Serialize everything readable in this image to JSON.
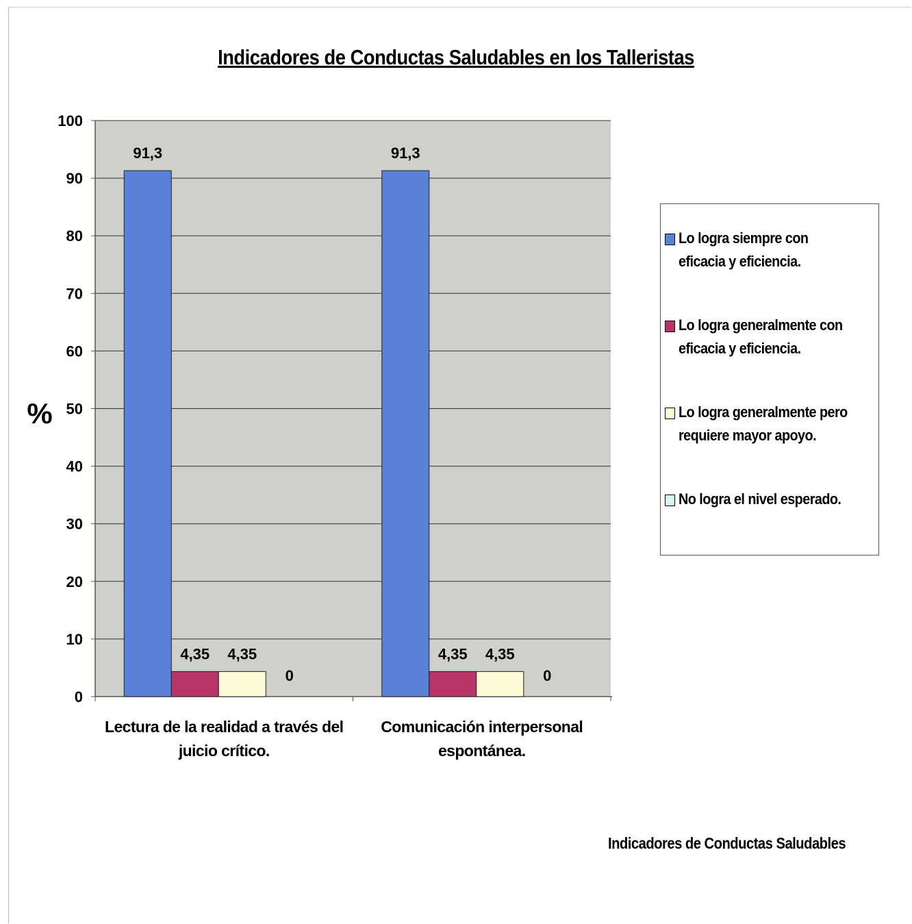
{
  "chart_data": {
    "type": "bar",
    "title": "Indicadores de Conductas Saludables en los Talleristas",
    "ylabel": "%",
    "xlabel": "Indicadores de Conductas Saludables",
    "ylim": [
      0,
      100
    ],
    "yticks": [
      "0",
      "10",
      "20",
      "30",
      "40",
      "50",
      "60",
      "70",
      "80",
      "90",
      "100"
    ],
    "grid": true,
    "legend_position": "right",
    "categories": [
      [
        "Lectura de la realidad a través del",
        "juicio crítico."
      ],
      [
        "Comunicación interpersonal",
        "espontánea."
      ]
    ],
    "series": [
      {
        "name": "Lo logra siempre con eficacia y eficiencia.",
        "values": [
          91.3,
          91.3
        ],
        "labels": [
          "91,3",
          "91,3"
        ],
        "color": "#5b80d9"
      },
      {
        "name": "Lo logra generalmente con eficacia y eficiencia.",
        "values": [
          4.35,
          4.35
        ],
        "labels": [
          "4,35",
          "4,35"
        ],
        "color": "#b8356a"
      },
      {
        "name": "Lo logra generalmente pero requiere mayor apoyo.",
        "values": [
          4.35,
          4.35
        ],
        "labels": [
          "4,35",
          "4,35"
        ],
        "color": "#fdfbd6"
      },
      {
        "name": "No logra el nivel esperado.",
        "values": [
          0,
          0
        ],
        "labels": [
          "0",
          "0"
        ],
        "color": "#d5f7f8"
      }
    ]
  },
  "colors": {
    "plot_background": "#cfcfcb",
    "gridline": "#333333",
    "axis": "#555555"
  }
}
